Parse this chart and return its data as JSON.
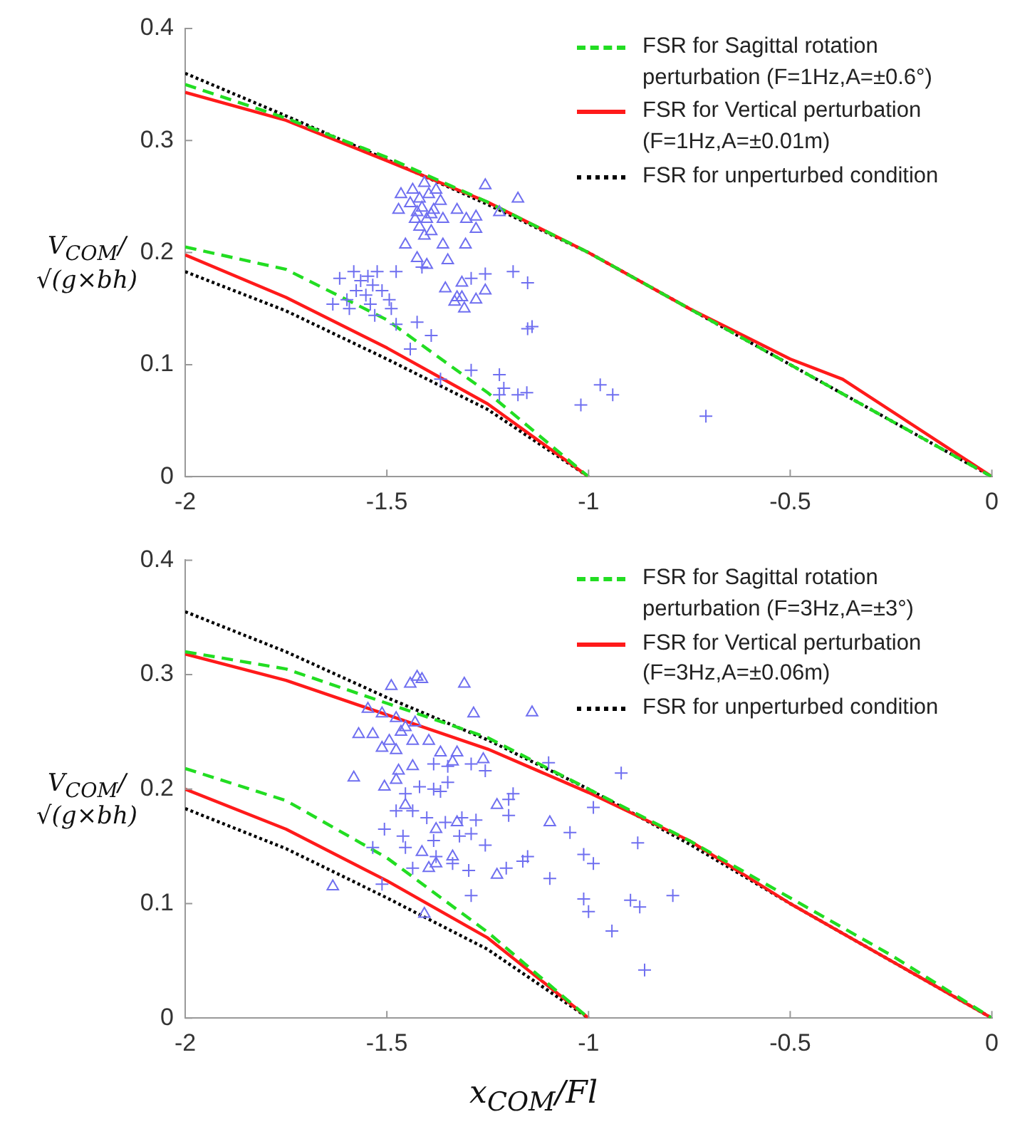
{
  "chart_data": [
    {
      "type": "scatter",
      "ylabel": "V$_{COM}$/√(g×bh)",
      "xlim": [
        -2,
        0
      ],
      "xticks": [
        -2,
        -1.5,
        -1,
        -0.5,
        0
      ],
      "ylim": [
        0,
        0.4
      ],
      "yticks": [
        0,
        0.1,
        0.2,
        0.3,
        0.4
      ],
      "grid": false,
      "legend": "top right",
      "series": [
        {
          "type": "line",
          "name": "FSR for Sagittal rotation perturbation (F=1Hz,A=±0.6°)",
          "color": "#22dd22",
          "line_style": "dashed",
          "x": [
            -2,
            -1.75,
            -1.5,
            -1.25,
            -1,
            -0.75,
            -0.5,
            -0.25,
            0
          ],
          "values": [
            0.35,
            0.32,
            0.285,
            0.245,
            0.2,
            0.15,
            0.1,
            0.05,
            0
          ]
        },
        {
          "type": "line",
          "color": "#22dd22",
          "line_style": "dashed",
          "x": [
            -2,
            -1.75,
            -1.5,
            -1.25,
            -1.1,
            -1
          ],
          "values": [
            0.205,
            0.185,
            0.14,
            0.075,
            0.03,
            0
          ]
        },
        {
          "type": "line",
          "name": "FSR for Vertical perturbation (F=1Hz,A=±0.01m)",
          "color": "#ff1a1a",
          "line_style": "solid",
          "x": [
            -2,
            -1.75,
            -1.5,
            -1.25,
            -1,
            -0.75,
            -0.5,
            -0.37,
            0
          ],
          "values": [
            0.343,
            0.318,
            0.282,
            0.245,
            0.2,
            0.15,
            0.105,
            0.087,
            0
          ]
        },
        {
          "type": "line",
          "color": "#ff1a1a",
          "line_style": "solid",
          "x": [
            -2,
            -1.75,
            -1.5,
            -1.25,
            -1
          ],
          "values": [
            0.198,
            0.16,
            0.115,
            0.065,
            0
          ]
        },
        {
          "type": "line",
          "name": "FSR for unperturbed condition",
          "color": "#000000",
          "line_style": "dotted",
          "x": [
            -2,
            -1.75,
            -1.5,
            -1.25,
            -1,
            -0.75,
            -0.5,
            -0.25,
            0
          ],
          "values": [
            0.36,
            0.322,
            0.283,
            0.243,
            0.2,
            0.15,
            0.1,
            0.05,
            0
          ]
        },
        {
          "type": "line",
          "color": "#000000",
          "line_style": "dotted",
          "x": [
            -2,
            -1.75,
            -1.5,
            -1.25,
            -1
          ],
          "values": [
            0.183,
            0.148,
            0.105,
            0.06,
            0
          ]
        },
        {
          "type": "scatter",
          "marker": "triangle",
          "color": "#6f6ff0",
          "x": [
            -1.465,
            -1.471,
            -1.436,
            -1.419,
            -1.407,
            -1.396,
            -1.378,
            -1.367,
            -1.384,
            -1.425,
            -1.43,
            -1.401,
            -1.419,
            -1.39,
            -1.361,
            -1.326,
            -1.303,
            -1.279,
            -1.279,
            -1.256,
            -1.221,
            -1.175,
            -1.454,
            -1.425,
            -1.401,
            -1.361,
            -1.349,
            -1.305,
            -1.355,
            -1.332,
            -1.314,
            -1.308,
            -1.279,
            -1.256,
            -1.314,
            -1.326,
            -1.442,
            -1.413,
            -1.39,
            -1.407
          ],
          "values": [
            0.252,
            0.238,
            0.256,
            0.248,
            0.262,
            0.252,
            0.256,
            0.246,
            0.238,
            0.236,
            0.23,
            0.23,
            0.223,
            0.219,
            0.23,
            0.238,
            0.23,
            0.232,
            0.221,
            0.26,
            0.236,
            0.248,
            0.207,
            0.195,
            0.189,
            0.207,
            0.193,
            0.207,
            0.168,
            0.156,
            0.16,
            0.15,
            0.158,
            0.166,
            0.173,
            0.16,
            0.244,
            0.24,
            0.234,
            0.215
          ]
        },
        {
          "type": "scatter",
          "marker": "cross",
          "color": "#6f6ff0",
          "x": [
            -1.617,
            -1.582,
            -1.565,
            -1.547,
            -1.535,
            -1.552,
            -1.541,
            -1.524,
            -1.512,
            -1.576,
            -1.634,
            -1.593,
            -1.494,
            -1.477,
            -1.489,
            -1.477,
            -1.425,
            -1.39,
            -1.442,
            -1.413,
            -1.291,
            -1.256,
            -1.187,
            -1.151,
            -1.14,
            -1.151,
            -1.291,
            -1.221,
            -1.21,
            -1.175,
            -1.221,
            -1.367,
            -1.019,
            -0.971,
            -0.94,
            -0.709,
            -1.153,
            -1.599,
            -1.53
          ],
          "values": [
            0.177,
            0.183,
            0.175,
            0.179,
            0.171,
            0.162,
            0.154,
            0.183,
            0.166,
            0.166,
            0.154,
            0.15,
            0.158,
            0.183,
            0.15,
            0.136,
            0.138,
            0.126,
            0.114,
            0.187,
            0.177,
            0.181,
            0.183,
            0.173,
            0.134,
            0.132,
            0.095,
            0.091,
            0.079,
            0.073,
            0.073,
            0.087,
            0.064,
            0.082,
            0.073,
            0.054,
            0.075,
            0.158,
            0.144
          ]
        }
      ]
    },
    {
      "type": "scatter",
      "ylabel": "V$_{COM}$/√(g×bh)",
      "xlabel": "x$_{COM}$/Fl",
      "xlim": [
        -2,
        0
      ],
      "xticks": [
        -2,
        -1.5,
        -1,
        -0.5,
        0
      ],
      "ylim": [
        0,
        0.4
      ],
      "yticks": [
        0,
        0.1,
        0.2,
        0.3,
        0.4
      ],
      "grid": false,
      "legend": "top right",
      "series": [
        {
          "type": "line",
          "name": "FSR for Sagittal rotation perturbation (F=3Hz,A=±3°)",
          "color": "#22dd22",
          "line_style": "dashed",
          "x": [
            -2,
            -1.75,
            -1.5,
            -1.25,
            -1,
            -0.75,
            -0.5,
            -0.25,
            0
          ],
          "values": [
            0.32,
            0.305,
            0.275,
            0.245,
            0.2,
            0.155,
            0.105,
            0.055,
            0
          ]
        },
        {
          "type": "line",
          "color": "#22dd22",
          "line_style": "dashed",
          "x": [
            -2,
            -1.75,
            -1.5,
            -1.25,
            -1
          ],
          "values": [
            0.218,
            0.19,
            0.14,
            0.075,
            0
          ]
        },
        {
          "type": "line",
          "name": "FSR for Vertical perturbation (F=3Hz,A=±0.06m)",
          "color": "#ff1a1a",
          "line_style": "solid",
          "x": [
            -2,
            -1.75,
            -1.5,
            -1.25,
            -1,
            -0.75,
            -0.5,
            -0.25,
            0
          ],
          "values": [
            0.318,
            0.295,
            0.265,
            0.235,
            0.197,
            0.155,
            0.1,
            0.05,
            0
          ]
        },
        {
          "type": "line",
          "color": "#ff1a1a",
          "line_style": "solid",
          "x": [
            -2,
            -1.75,
            -1.5,
            -1.25,
            -1
          ],
          "values": [
            0.2,
            0.165,
            0.12,
            0.07,
            0
          ]
        },
        {
          "type": "line",
          "name": "FSR for unperturbed condition",
          "color": "#000000",
          "line_style": "dotted",
          "x": [
            -2,
            -1.75,
            -1.5,
            -1.25,
            -1,
            -0.75,
            -0.5,
            -0.25,
            0
          ],
          "values": [
            0.355,
            0.32,
            0.28,
            0.243,
            0.2,
            0.152,
            0.1,
            0.05,
            0
          ]
        },
        {
          "type": "line",
          "color": "#000000",
          "line_style": "dotted",
          "x": [
            -2,
            -1.75,
            -1.5,
            -1.25,
            -1
          ],
          "values": [
            0.183,
            0.148,
            0.105,
            0.06,
            0
          ]
        },
        {
          "type": "scatter",
          "marker": "triangle",
          "color": "#6f6ff0",
          "x": [
            -1.489,
            -1.442,
            -1.425,
            -1.413,
            -1.308,
            -1.285,
            -1.14,
            -1.547,
            -1.512,
            -1.477,
            -1.454,
            -1.43,
            -1.465,
            -1.494,
            -1.57,
            -1.535,
            -1.436,
            -1.396,
            -1.477,
            -1.512,
            -1.367,
            -1.337,
            -1.326,
            -1.261,
            -1.436,
            -1.471,
            -1.506,
            -1.582,
            -1.477,
            -1.227,
            -1.096,
            -1.454,
            -1.378,
            -1.326,
            -1.413,
            -1.378,
            -1.396,
            -1.337,
            -1.227,
            -1.634,
            -1.407
          ],
          "values": [
            0.29,
            0.292,
            0.298,
            0.296,
            0.292,
            0.266,
            0.267,
            0.27,
            0.266,
            0.262,
            0.254,
            0.258,
            0.25,
            0.242,
            0.248,
            0.248,
            0.242,
            0.242,
            0.234,
            0.236,
            0.232,
            0.224,
            0.232,
            0.226,
            0.22,
            0.216,
            0.202,
            0.21,
            0.208,
            0.186,
            0.171,
            0.186,
            0.165,
            0.171,
            0.145,
            0.135,
            0.131,
            0.141,
            0.125,
            0.115,
            0.091
          ]
        },
        {
          "type": "scatter",
          "marker": "cross",
          "color": "#6f6ff0",
          "x": [
            -1.384,
            -1.349,
            -1.291,
            -1.256,
            -1.419,
            -1.384,
            -1.367,
            -1.349,
            -1.454,
            -1.477,
            -1.436,
            -1.401,
            -1.355,
            -1.314,
            -1.279,
            -1.198,
            -1.187,
            -1.198,
            -1.506,
            -1.46,
            -1.454,
            -1.384,
            -1.32,
            -1.291,
            -1.256,
            -1.535,
            -1.436,
            -1.378,
            -1.337,
            -1.297,
            -1.204,
            -1.163,
            -1.151,
            -1.096,
            -1.512,
            -1.291,
            -1.099,
            -0.988,
            -0.919,
            -1.046,
            -1.012,
            -0.988,
            -0.878,
            -1.012,
            -1,
            -0.896,
            -0.873,
            -0.791,
            -0.942,
            -0.861
          ],
          "values": [
            0.222,
            0.22,
            0.222,
            0.216,
            0.202,
            0.2,
            0.198,
            0.206,
            0.196,
            0.181,
            0.181,
            0.175,
            0.171,
            0.175,
            0.173,
            0.191,
            0.196,
            0.177,
            0.165,
            0.159,
            0.149,
            0.155,
            0.159,
            0.161,
            0.151,
            0.149,
            0.131,
            0.141,
            0.135,
            0.129,
            0.131,
            0.137,
            0.141,
            0.122,
            0.117,
            0.107,
            0.223,
            0.184,
            0.214,
            0.162,
            0.143,
            0.135,
            0.153,
            0.104,
            0.093,
            0.103,
            0.097,
            0.107,
            0.076,
            0.042
          ]
        }
      ]
    }
  ]
}
